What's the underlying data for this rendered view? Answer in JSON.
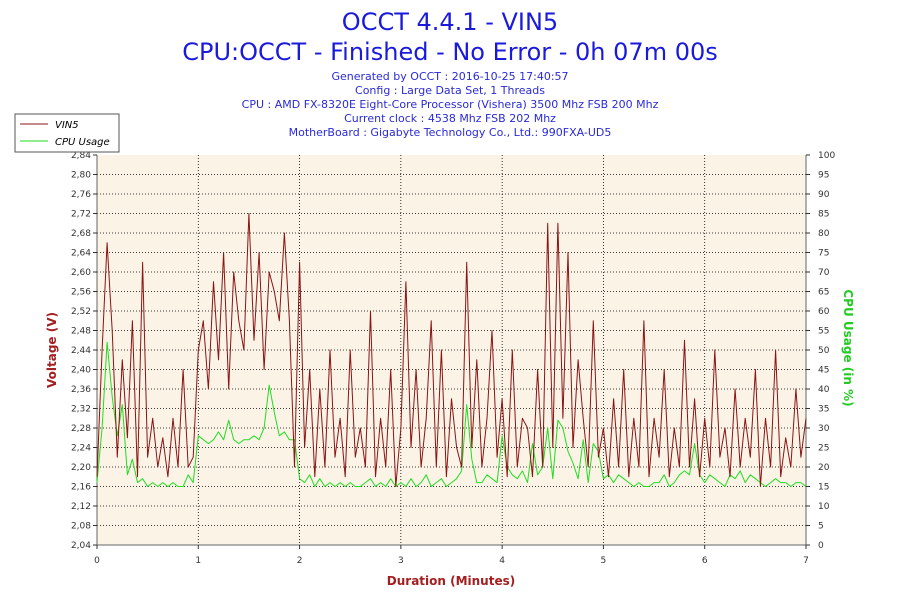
{
  "header": {
    "title_line1": "OCCT 4.4.1 - VIN5",
    "title_line2": "CPU:OCCT - Finished - No Error - 0h 07m 00s",
    "info": [
      "Generated by OCCT : 2016-10-25 17:40:57",
      "Config : Large Data Set, 1 Threads",
      "CPU : AMD FX-8320E Eight-Core Processor (Vishera) 3500 Mhz FSB 200 Mhz",
      "Current clock : 4538 Mhz FSB 202 Mhz",
      "MotherBoard : Gigabyte Technology Co., Ltd.: 990FXA-UD5"
    ]
  },
  "colors": {
    "vin5": "#8b1414",
    "cpu": "#22dd22",
    "plot_bg": "#faf3e6",
    "left_axis_title": "#a31e1e",
    "right_axis_title": "#22cc22",
    "x_axis_title": "#a31e1e"
  },
  "chart_data": {
    "type": "line",
    "xlabel": "Duration (Minutes)",
    "ylabel_left": "Voltage (V)",
    "ylabel_right": "CPU Usage (in %)",
    "xlim": [
      0,
      7
    ],
    "ylim_left": [
      2.04,
      2.84
    ],
    "ylim_right": [
      0,
      100
    ],
    "x_ticks": [
      "0",
      "1",
      "2",
      "3",
      "4",
      "5",
      "6",
      "7"
    ],
    "y_left_ticks": [
      "2,04",
      "2,08",
      "2,12",
      "2,16",
      "2,20",
      "2,24",
      "2,28",
      "2,32",
      "2,36",
      "2,40",
      "2,44",
      "2,48",
      "2,52",
      "2,56",
      "2,60",
      "2,64",
      "2,68",
      "2,72",
      "2,76",
      "2,80",
      "2,84"
    ],
    "y_right_ticks": [
      "0",
      "5",
      "10",
      "15",
      "20",
      "25",
      "30",
      "35",
      "40",
      "45",
      "50",
      "55",
      "60",
      "65",
      "70",
      "75",
      "80",
      "85",
      "90",
      "95",
      "100"
    ],
    "grid": true,
    "legend_position": "top-left",
    "series": [
      {
        "name": "VIN5",
        "axis": "left",
        "x": [
          0.0,
          0.05,
          0.1,
          0.15,
          0.2,
          0.25,
          0.3,
          0.35,
          0.4,
          0.45,
          0.5,
          0.55,
          0.6,
          0.65,
          0.7,
          0.75,
          0.8,
          0.85,
          0.9,
          0.95,
          1.0,
          1.05,
          1.1,
          1.15,
          1.2,
          1.25,
          1.3,
          1.35,
          1.4,
          1.45,
          1.5,
          1.55,
          1.6,
          1.65,
          1.7,
          1.75,
          1.8,
          1.85,
          1.9,
          1.95,
          2.0,
          2.05,
          2.1,
          2.15,
          2.2,
          2.25,
          2.3,
          2.35,
          2.4,
          2.45,
          2.5,
          2.55,
          2.6,
          2.65,
          2.7,
          2.75,
          2.8,
          2.85,
          2.9,
          2.95,
          3.0,
          3.05,
          3.1,
          3.15,
          3.2,
          3.25,
          3.3,
          3.35,
          3.4,
          3.45,
          3.5,
          3.55,
          3.6,
          3.65,
          3.7,
          3.75,
          3.8,
          3.85,
          3.9,
          3.95,
          4.0,
          4.05,
          4.1,
          4.15,
          4.2,
          4.25,
          4.3,
          4.35,
          4.4,
          4.45,
          4.5,
          4.55,
          4.6,
          4.65,
          4.7,
          4.75,
          4.8,
          4.85,
          4.9,
          4.95,
          5.0,
          5.05,
          5.1,
          5.15,
          5.2,
          5.25,
          5.3,
          5.35,
          5.4,
          5.45,
          5.5,
          5.55,
          5.6,
          5.65,
          5.7,
          5.75,
          5.8,
          5.85,
          5.9,
          5.95,
          6.0,
          6.05,
          6.1,
          6.15,
          6.2,
          6.25,
          6.3,
          6.35,
          6.4,
          6.45,
          6.5,
          6.55,
          6.6,
          6.65,
          6.7,
          6.75,
          6.8,
          6.85,
          6.9,
          6.95,
          7.0
        ],
        "y": [
          2.18,
          2.44,
          2.66,
          2.48,
          2.22,
          2.42,
          2.26,
          2.5,
          2.18,
          2.62,
          2.22,
          2.3,
          2.2,
          2.26,
          2.18,
          2.3,
          2.2,
          2.4,
          2.2,
          2.22,
          2.44,
          2.5,
          2.36,
          2.58,
          2.42,
          2.64,
          2.36,
          2.6,
          2.5,
          2.44,
          2.72,
          2.46,
          2.64,
          2.4,
          2.6,
          2.56,
          2.5,
          2.68,
          2.5,
          2.2,
          2.62,
          2.24,
          2.4,
          2.18,
          2.36,
          2.2,
          2.44,
          2.22,
          2.3,
          2.18,
          2.44,
          2.22,
          2.28,
          2.2,
          2.52,
          2.18,
          2.3,
          2.2,
          2.4,
          2.16,
          2.28,
          2.58,
          2.24,
          2.4,
          2.2,
          2.3,
          2.5,
          2.2,
          2.44,
          2.18,
          2.34,
          2.24,
          2.2,
          2.62,
          2.24,
          2.42,
          2.2,
          2.3,
          2.48,
          2.22,
          2.34,
          2.18,
          2.44,
          2.2,
          2.3,
          2.28,
          2.18,
          2.4,
          2.2,
          2.7,
          2.24,
          2.7,
          2.3,
          2.64,
          2.24,
          2.42,
          2.3,
          2.2,
          2.5,
          2.22,
          2.28,
          2.18,
          2.34,
          2.2,
          2.4,
          2.18,
          2.3,
          2.2,
          2.5,
          2.18,
          2.3,
          2.22,
          2.4,
          2.18,
          2.28,
          2.2,
          2.46,
          2.2,
          2.34,
          2.18,
          2.3,
          2.2,
          2.44,
          2.22,
          2.28,
          2.18,
          2.36,
          2.2,
          2.3,
          2.22,
          2.4,
          2.16,
          2.3,
          2.2,
          2.44,
          2.18,
          2.26,
          2.2,
          2.36,
          2.22,
          2.3
        ]
      },
      {
        "name": "CPU Usage",
        "axis": "right",
        "x": [
          0.0,
          0.05,
          0.1,
          0.15,
          0.2,
          0.25,
          0.3,
          0.35,
          0.4,
          0.45,
          0.5,
          0.55,
          0.6,
          0.65,
          0.7,
          0.75,
          0.8,
          0.85,
          0.9,
          0.95,
          1.0,
          1.05,
          1.1,
          1.15,
          1.2,
          1.25,
          1.3,
          1.35,
          1.4,
          1.45,
          1.5,
          1.55,
          1.6,
          1.65,
          1.7,
          1.75,
          1.8,
          1.85,
          1.9,
          1.95,
          2.0,
          2.05,
          2.1,
          2.15,
          2.2,
          2.25,
          2.3,
          2.35,
          2.4,
          2.45,
          2.5,
          2.55,
          2.6,
          2.65,
          2.7,
          2.75,
          2.8,
          2.85,
          2.9,
          2.95,
          3.0,
          3.05,
          3.1,
          3.15,
          3.2,
          3.25,
          3.3,
          3.35,
          3.4,
          3.45,
          3.5,
          3.55,
          3.6,
          3.65,
          3.7,
          3.75,
          3.8,
          3.85,
          3.9,
          3.95,
          4.0,
          4.05,
          4.1,
          4.15,
          4.2,
          4.25,
          4.3,
          4.35,
          4.4,
          4.45,
          4.5,
          4.55,
          4.6,
          4.65,
          4.7,
          4.75,
          4.8,
          4.85,
          4.9,
          4.95,
          5.0,
          5.05,
          5.1,
          5.15,
          5.2,
          5.25,
          5.3,
          5.35,
          5.4,
          5.45,
          5.5,
          5.55,
          5.6,
          5.65,
          5.7,
          5.75,
          5.8,
          5.85,
          5.9,
          5.95,
          6.0,
          6.05,
          6.1,
          6.15,
          6.2,
          6.25,
          6.3,
          6.35,
          6.4,
          6.45,
          6.5,
          6.55,
          6.6,
          6.65,
          6.7,
          6.75,
          6.8,
          6.85,
          6.9,
          6.95,
          7.0
        ],
        "y": [
          16,
          30,
          52,
          38,
          28,
          36,
          18,
          22,
          16,
          17,
          15,
          16,
          15,
          16,
          15,
          16,
          15,
          15,
          18,
          16,
          28,
          27,
          26,
          27,
          29,
          27,
          32,
          27,
          26,
          27,
          27,
          28,
          27,
          30,
          41,
          34,
          28,
          29,
          27,
          27,
          17,
          16,
          18,
          15,
          17,
          15,
          16,
          15,
          16,
          15,
          16,
          15,
          15,
          16,
          17,
          15,
          16,
          15,
          17,
          15,
          16,
          15,
          17,
          15,
          16,
          18,
          15,
          16,
          17,
          15,
          16,
          17,
          19,
          36,
          22,
          16,
          16,
          18,
          17,
          16,
          28,
          20,
          18,
          17,
          19,
          16,
          26,
          18,
          20,
          30,
          17,
          32,
          30,
          24,
          21,
          17,
          27,
          16,
          26,
          24,
          17,
          18,
          16,
          18,
          17,
          16,
          15,
          16,
          15,
          15,
          16,
          16,
          18,
          15,
          16,
          18,
          19,
          18,
          26,
          18,
          16,
          18,
          17,
          16,
          15,
          18,
          17,
          19,
          16,
          18,
          17,
          16,
          15,
          16,
          17,
          16,
          16,
          15,
          16,
          16,
          15
        ]
      }
    ]
  }
}
